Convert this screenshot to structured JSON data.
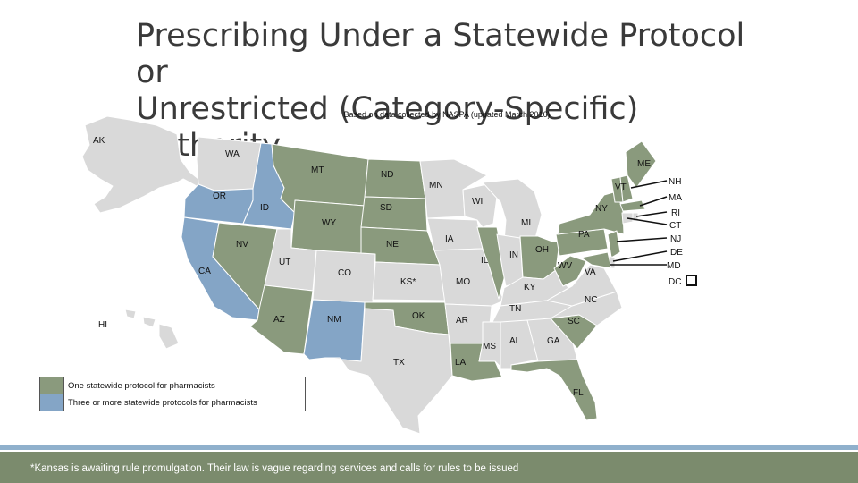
{
  "title_line1": "Prescribing Under a Statewide Protocol or",
  "title_line2": "Unrestricted (Category-Specific) Authority",
  "subtitle": "Based on data collected by NASPA (updated March 2016)",
  "colors": {
    "one_protocol": "#8a9a7d",
    "three_protocols": "#84a5c6",
    "other": "#d9d9d9",
    "border": "#ffffff"
  },
  "legend": [
    {
      "label": "One statewide protocol for pharmacists",
      "color": "#8a9a7d"
    },
    {
      "label": "Three or more statewide protocols for pharmacists",
      "color": "#84a5c6"
    }
  ],
  "states": {
    "AK": "AK",
    "HI": "HI",
    "WA": "WA",
    "OR": "OR",
    "CA": "CA",
    "ID": "ID",
    "NV": "NV",
    "MT": "MT",
    "WY": "WY",
    "UT": "UT",
    "CO": "CO",
    "AZ": "AZ",
    "NM": "NM",
    "ND": "ND",
    "SD": "SD",
    "NE": "NE",
    "KS": "KS*",
    "OK": "OK",
    "TX": "TX",
    "MN": "MN",
    "IA": "IA",
    "MO": "MO",
    "AR": "AR",
    "LA": "LA",
    "WI": "WI",
    "IL": "IL",
    "MI": "MI",
    "IN": "IN",
    "OH": "OH",
    "KY": "KY",
    "TN": "TN",
    "MS": "MS",
    "AL": "AL",
    "GA": "GA",
    "FL": "FL",
    "SC": "SC",
    "NC": "NC",
    "VA": "VA",
    "WV": "WV",
    "PA": "PA",
    "NY": "NY",
    "VT": "VT",
    "ME": "ME",
    "NH": "NH",
    "MA": "MA",
    "RI": "RI",
    "CT": "CT",
    "NJ": "NJ",
    "DE": "DE",
    "MD": "MD",
    "DC": "DC"
  },
  "footer": "*Kansas is awaiting rule promulgation. Their law is vague regarding services and calls for rules to be issued"
}
